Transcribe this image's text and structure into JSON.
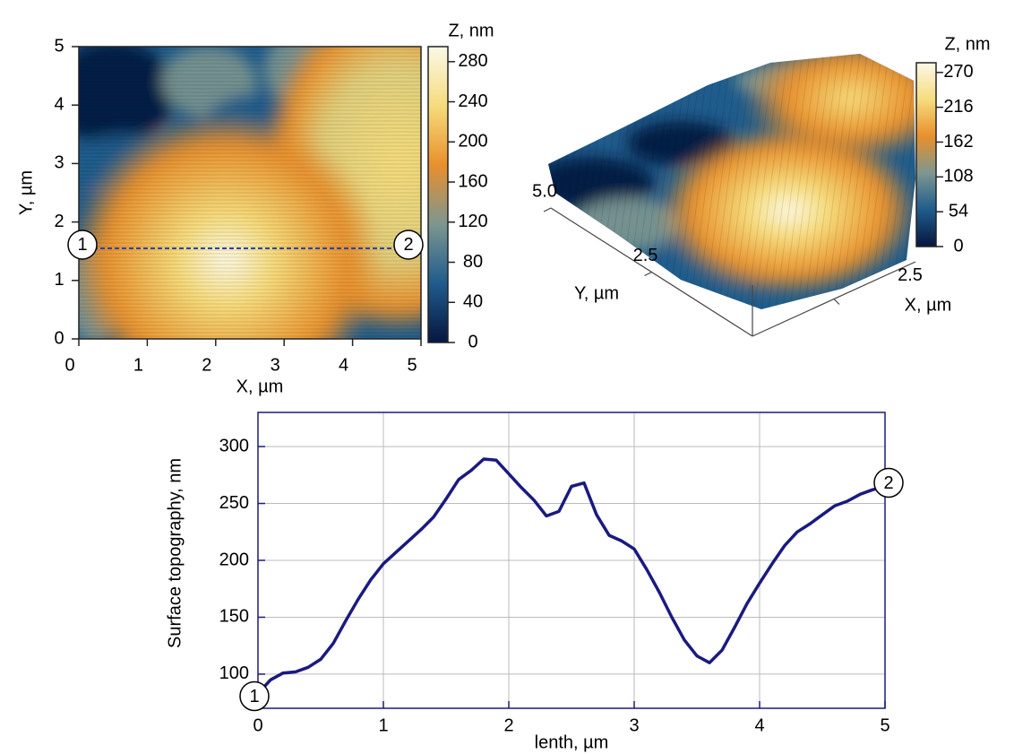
{
  "chart_data": [
    {
      "type": "heatmap",
      "xlabel": "X, µm",
      "ylabel": "Y, µm",
      "xlim": [
        0,
        5
      ],
      "ylim": [
        0,
        5
      ],
      "xticks": [
        0,
        1,
        2,
        3,
        4,
        5
      ],
      "yticks": [
        0,
        1,
        2,
        3,
        4,
        5
      ],
      "colormap": [
        "#06163f",
        "#1f5c8c",
        "#7d9690",
        "#e8902c",
        "#f6dc7c",
        "#fbf8e6"
      ],
      "colorbar": {
        "title": "Z, nm",
        "lim": [
          0,
          295
        ],
        "ticks": [
          0,
          40,
          80,
          120,
          160,
          200,
          240,
          280
        ]
      },
      "profile": {
        "y": 1.55,
        "start_label": "1",
        "end_label": "2",
        "color": "#3040a8"
      }
    },
    {
      "type": "surface3d",
      "xlabel": "X, µm",
      "ylabel": "Y, µm",
      "xlim": [
        0,
        5
      ],
      "ylim": [
        0,
        5
      ],
      "xticks": [
        2.5
      ],
      "yticks": [
        {
          "value": 5,
          "label": "5.0"
        },
        2.5
      ],
      "colormap": [
        "#06163f",
        "#1f5c8c",
        "#7d9690",
        "#e8902c",
        "#f6dc7c",
        "#fbf8e6"
      ],
      "colorbar": {
        "title": "Z, nm",
        "lim": [
          0,
          285
        ],
        "ticks": [
          0,
          54,
          108,
          162,
          216,
          270
        ]
      }
    },
    {
      "type": "line",
      "xlabel": "lenth, µm",
      "ylabel": "Surface topography, nm",
      "x": [
        0,
        0.1,
        0.2,
        0.3,
        0.4,
        0.5,
        0.6,
        0.7,
        0.8,
        0.9,
        1.0,
        1.1,
        1.2,
        1.3,
        1.4,
        1.5,
        1.6,
        1.7,
        1.8,
        1.9,
        2.0,
        2.1,
        2.2,
        2.3,
        2.4,
        2.5,
        2.6,
        2.7,
        2.8,
        2.9,
        3.0,
        3.1,
        3.2,
        3.3,
        3.4,
        3.5,
        3.6,
        3.7,
        3.8,
        3.9,
        4.0,
        4.1,
        4.2,
        4.3,
        4.4,
        4.5,
        4.6,
        4.7,
        4.8,
        4.9,
        5.0
      ],
      "values": [
        83,
        95,
        101,
        102,
        106,
        113,
        127,
        147,
        166,
        183,
        197,
        207,
        217,
        227,
        238,
        254,
        271,
        279,
        289,
        288,
        276,
        264,
        253,
        239,
        243,
        265,
        268,
        240,
        222,
        217,
        210,
        192,
        172,
        150,
        130,
        116,
        110,
        121,
        141,
        162,
        180,
        197,
        213,
        225,
        232,
        240,
        248,
        252,
        258,
        262,
        265
      ],
      "color": "#1a1a80",
      "xlim": [
        0,
        5
      ],
      "ylim": [
        70,
        330
      ],
      "xticks": [
        0,
        1,
        2,
        3,
        4,
        5
      ],
      "yticks": [
        100,
        150,
        200,
        250,
        300
      ],
      "grid": true,
      "endpoint_labels": [
        "1",
        "2"
      ]
    }
  ]
}
